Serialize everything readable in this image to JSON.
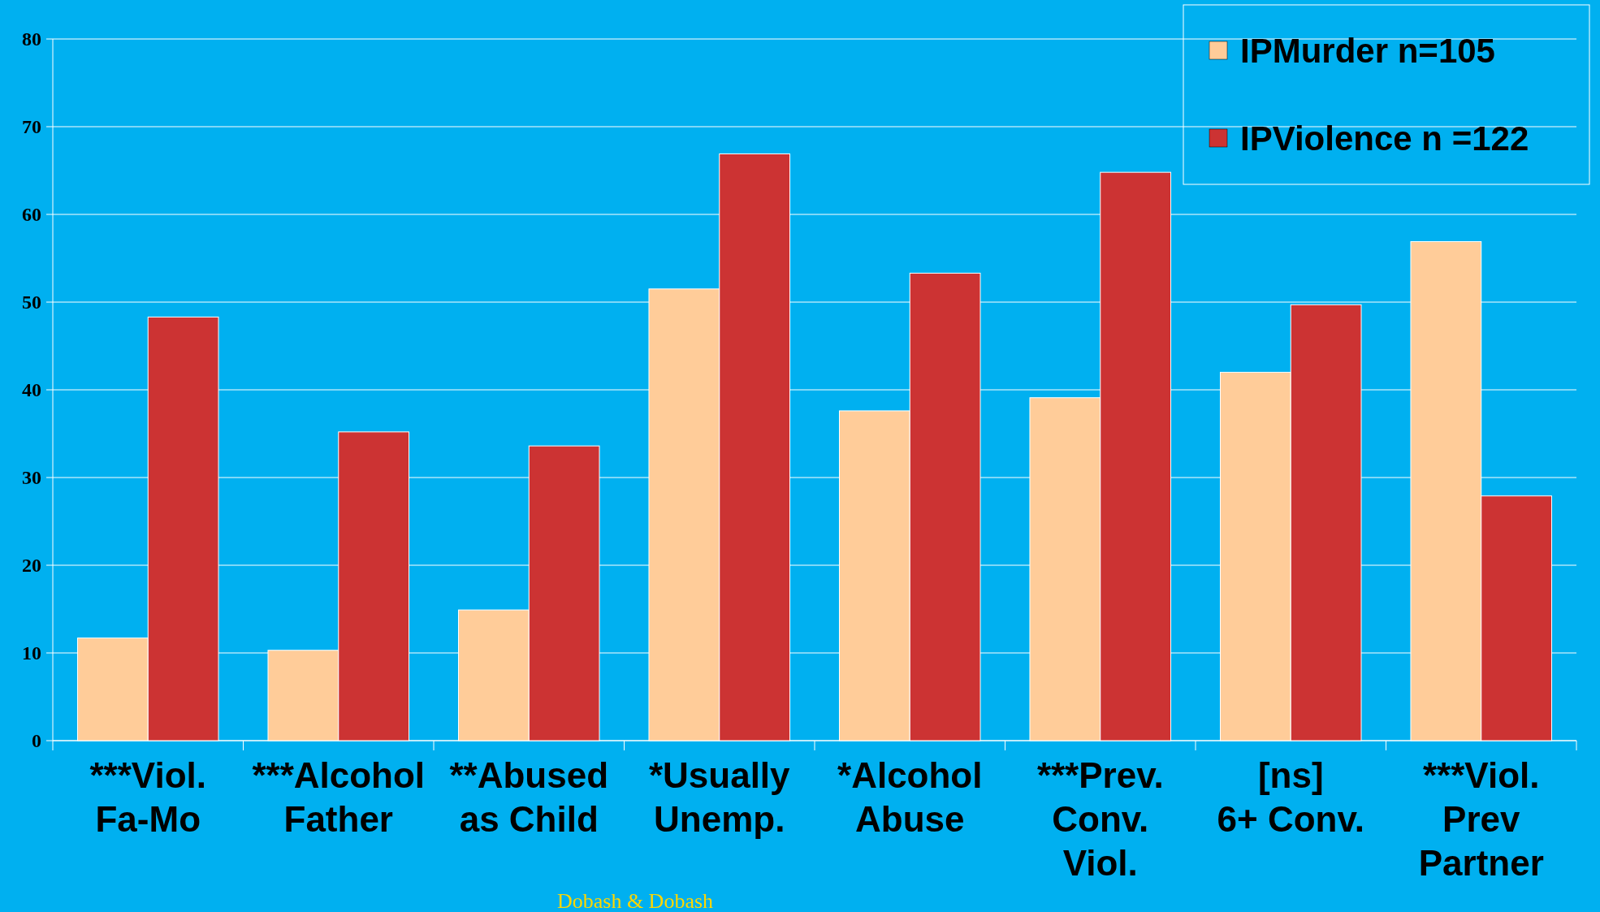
{
  "chart_data": {
    "type": "bar",
    "categories": [
      "***Viol.\nFa-Mo",
      "***Alcohol\nFather",
      "**Abused\nas Child",
      "*Usually\nUnemp.",
      "*Alcohol\nAbuse",
      "***Prev.\nConv.\nViol.",
      "[ns]\n6+ Conv.",
      "***Viol.\nPrev\nPartner"
    ],
    "series": [
      {
        "name": "IPMurder n=105",
        "color": "#ffcc99",
        "values": [
          11.7,
          10.3,
          14.9,
          51.5,
          37.6,
          39.1,
          42.0,
          56.9
        ]
      },
      {
        "name": "IPViolence n =122",
        "color": "#cc3333",
        "values": [
          48.3,
          35.2,
          33.6,
          66.9,
          53.3,
          64.8,
          49.7,
          27.9
        ]
      }
    ],
    "ylim": [
      0,
      80
    ],
    "yticks": [
      0,
      10,
      20,
      30,
      40,
      50,
      60,
      70,
      80
    ],
    "grid": "y",
    "legend": "top right",
    "annotations": [
      "Dobash & Dobash"
    ]
  }
}
